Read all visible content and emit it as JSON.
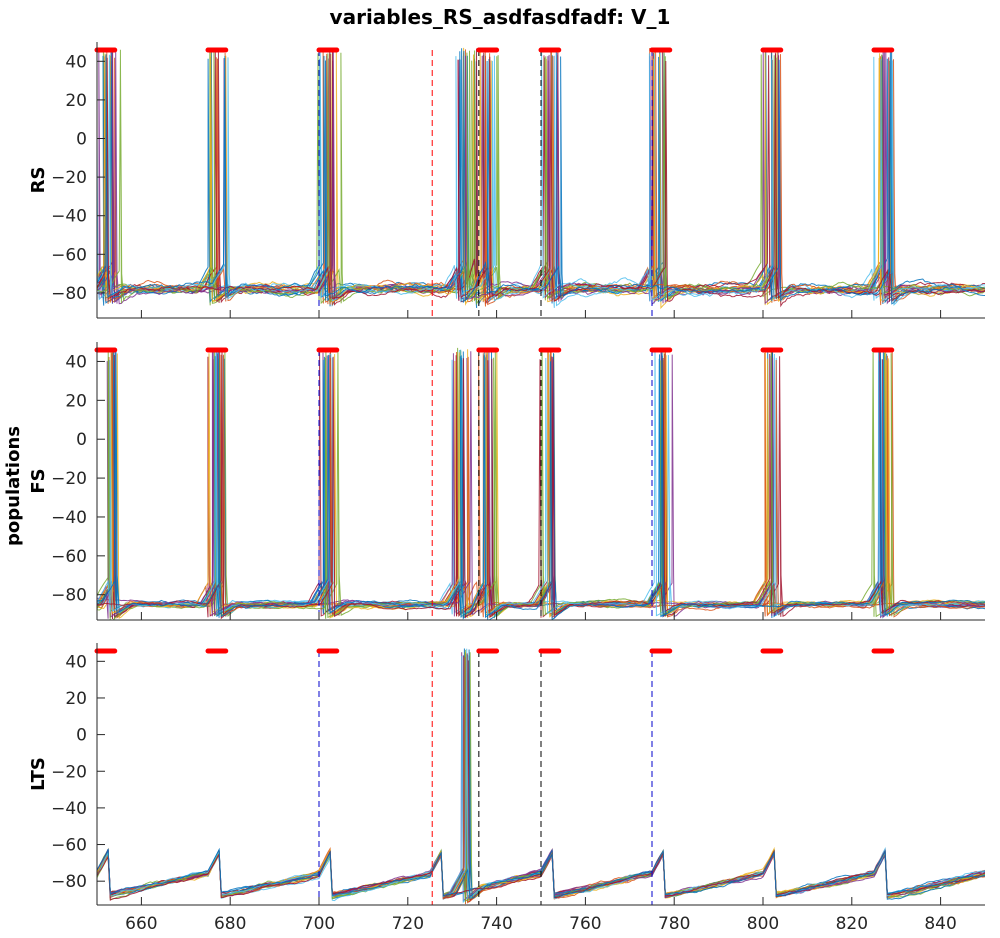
{
  "title": "variables_RS_asdfasdfadf: V_1",
  "shared_ylabel": "populations",
  "colors": [
    "#0072bd",
    "#d95319",
    "#edb120",
    "#7e2f8e",
    "#77ac30",
    "#4dbeee",
    "#a2142f"
  ],
  "chart_data": {
    "type": "line",
    "xlim": [
      650,
      850
    ],
    "ylim": [
      -93,
      50
    ],
    "x_ticks": [
      660,
      680,
      700,
      720,
      740,
      760,
      780,
      800,
      820,
      840
    ],
    "y_ticks": [
      40,
      20,
      0,
      -20,
      -40,
      -60,
      -80
    ],
    "vlines": [
      {
        "x": 700,
        "color": "#0000cc"
      },
      {
        "x": 725.5,
        "color": "#ff0000"
      },
      {
        "x": 736,
        "color": "#000000"
      },
      {
        "x": 750,
        "color": "#000000"
      },
      {
        "x": 775,
        "color": "#0000cc"
      }
    ],
    "red_bars": [
      [
        650,
        654
      ],
      [
        675,
        679
      ],
      [
        700,
        704
      ],
      [
        736,
        740
      ],
      [
        750,
        754
      ],
      [
        775,
        779
      ],
      [
        800,
        804
      ],
      [
        825,
        829
      ]
    ],
    "panels": [
      {
        "name": "RS",
        "baseline": -78,
        "noise": 5,
        "spike_times": [
          652,
          677,
          702,
          733,
          738,
          752,
          776,
          802,
          827
        ],
        "spike_spread": 2.4,
        "n_traces": 22
      },
      {
        "name": "FS",
        "baseline": -85,
        "noise": 3,
        "spike_times": [
          653,
          677,
          702,
          732,
          738,
          752,
          777,
          802,
          827
        ],
        "spike_spread": 1.8,
        "n_traces": 22
      },
      {
        "name": "LTS",
        "baseline": -82,
        "noise": 3,
        "spike_times": [
          733
        ],
        "spike_spread": 0.9,
        "n_traces": 22
      }
    ]
  }
}
